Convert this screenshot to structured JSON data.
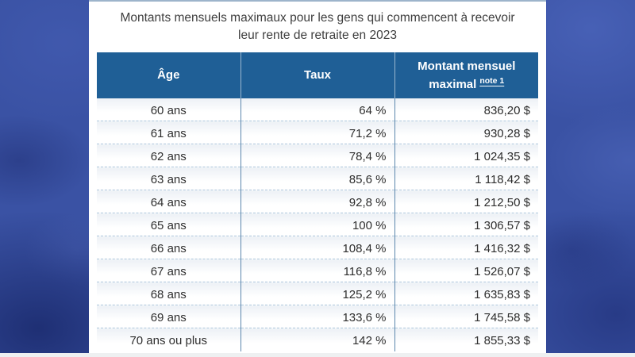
{
  "page": {
    "background_color": "#3a52a4",
    "bottom_strip_color": "#eef0f1"
  },
  "card": {
    "title": "Montants mensuels maximaux pour les gens qui commencent à recevoir leur rente de retraite en 2023"
  },
  "table": {
    "columns": [
      {
        "label": "Âge"
      },
      {
        "label": "Taux"
      },
      {
        "label": "Montant mensuel maximal",
        "note": {
          "label": "note 1"
        }
      }
    ],
    "rows": [
      {
        "age": "60 ans",
        "taux": "64 %",
        "montant": "836,20 $"
      },
      {
        "age": "61 ans",
        "taux": "71,2 %",
        "montant": "930,28 $"
      },
      {
        "age": "62 ans",
        "taux": "78,4 %",
        "montant": "1 024,35 $"
      },
      {
        "age": "63 ans",
        "taux": "85,6 %",
        "montant": "1 118,42 $"
      },
      {
        "age": "64 ans",
        "taux": "92,8 %",
        "montant": "1 212,50 $"
      },
      {
        "age": "65 ans",
        "taux": "100 %",
        "montant": "1 306,57 $"
      },
      {
        "age": "66 ans",
        "taux": "108,4 %",
        "montant": "1 416,32 $"
      },
      {
        "age": "67 ans",
        "taux": "116,8 %",
        "montant": "1 526,07 $"
      },
      {
        "age": "68 ans",
        "taux": "125,2 %",
        "montant": "1 635,83 $"
      },
      {
        "age": "69 ans",
        "taux": "133,6 %",
        "montant": "1 745,58 $"
      },
      {
        "age": "70 ans ou plus",
        "taux": "142 %",
        "montant": "1 855,33 $"
      }
    ]
  },
  "colors": {
    "header_bg": "#1f5f96",
    "header_text": "#ffffff",
    "column_divider": "#5c87ad",
    "row_separator_dashed": "#a9c3da",
    "title_text": "#3e3e3e",
    "cell_text": "#2e2e2e",
    "card_top_border": "#9db4cb"
  }
}
